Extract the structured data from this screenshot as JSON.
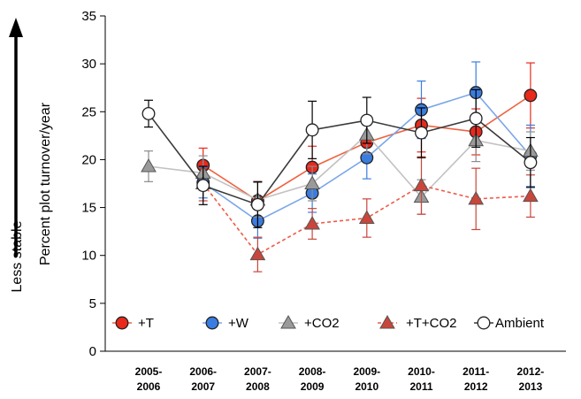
{
  "chart_data": {
    "type": "line",
    "ylabel": "Percent plot turnover/year",
    "annotation": "Less stable",
    "ylim": [
      0,
      35
    ],
    "yticks": [
      0,
      5,
      10,
      15,
      20,
      25,
      30,
      35
    ],
    "categories": [
      [
        "2005-",
        "2006"
      ],
      [
        "2006-",
        "2007"
      ],
      [
        "2007-",
        "2008"
      ],
      [
        "2008-",
        "2009"
      ],
      [
        "2009-",
        "2010"
      ],
      [
        "2010-",
        "2011"
      ],
      [
        "2011-",
        "2012"
      ],
      [
        "2012-",
        "2013"
      ]
    ],
    "legend_position": "bottom",
    "series": [
      {
        "name": "+T",
        "color": "#e8291c",
        "line_color": "#f0623f",
        "dashed": false,
        "marker": "circle",
        "fill": "#e8291c",
        "values": [
          null,
          19.4,
          15.7,
          19.2,
          21.8,
          23.6,
          22.9,
          26.7
        ],
        "errors": [
          null,
          1.8,
          2.0,
          2.2,
          1.8,
          2.8,
          2.4,
          3.4
        ]
      },
      {
        "name": "+W",
        "color": "#3a7de0",
        "line_color": "#7aa6ea",
        "dashed": false,
        "marker": "circle",
        "fill": "#3a7de0",
        "values": [
          null,
          17.6,
          13.6,
          16.5,
          20.2,
          25.2,
          27.0,
          20.4
        ],
        "errors": [
          null,
          1.6,
          1.8,
          2.0,
          2.2,
          3.0,
          3.2,
          3.2
        ]
      },
      {
        "name": "+CO2",
        "color": "#8c8c8c",
        "line_color": "#c2c2c2",
        "dashed": false,
        "marker": "triangle",
        "fill": "#9a9a9a",
        "values": [
          19.3,
          18.6,
          15.8,
          17.5,
          22.6,
          16.1,
          22.0,
          20.9
        ],
        "errors": [
          1.6,
          1.8,
          1.8,
          1.8,
          2.0,
          1.8,
          2.2,
          2.0
        ]
      },
      {
        "name": "+T+CO2",
        "color": "#c9463a",
        "line_color": "#ee5a4a",
        "dashed": true,
        "marker": "triangle",
        "fill": "#c9463a",
        "values": [
          null,
          17.5,
          10.1,
          13.3,
          13.9,
          17.3,
          15.9,
          16.2
        ],
        "errors": [
          null,
          1.8,
          1.8,
          1.6,
          2.0,
          3.0,
          3.2,
          2.2
        ]
      },
      {
        "name": "Ambient",
        "color": "#000000",
        "line_color": "#3a3a3a",
        "dashed": false,
        "marker": "circle",
        "fill": "#ffffff",
        "values": [
          24.8,
          17.3,
          15.3,
          23.1,
          24.1,
          22.8,
          24.3,
          19.7
        ],
        "errors": [
          1.4,
          2.0,
          2.4,
          3.0,
          2.4,
          2.6,
          3.0,
          2.6
        ]
      }
    ]
  }
}
